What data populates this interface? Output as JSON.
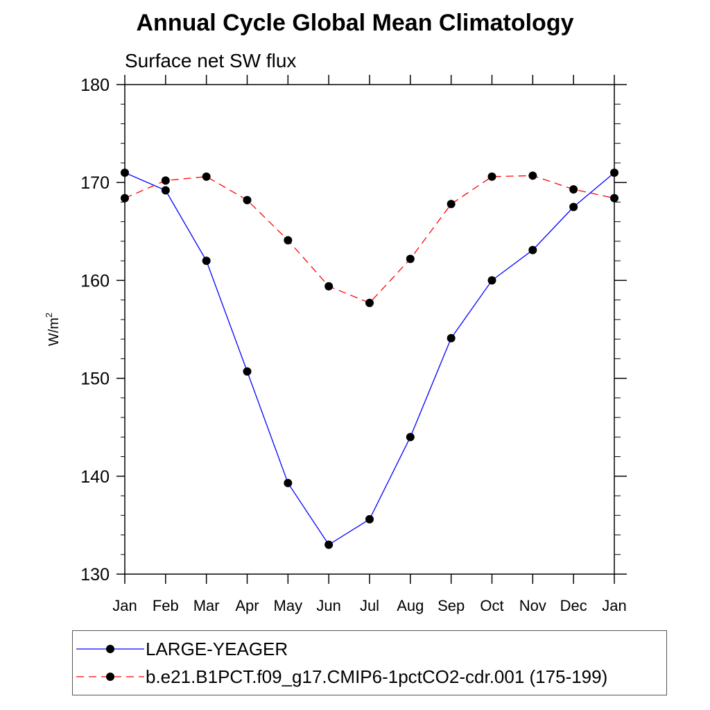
{
  "chart_data": {
    "type": "line",
    "title": "Annual Cycle Global Mean Climatology",
    "subtitle": "Surface net SW flux",
    "ylabel_base": "W/m",
    "ylabel_sup": "2",
    "ylim": [
      130,
      180
    ],
    "yticks": [
      130,
      140,
      150,
      160,
      170,
      180
    ],
    "yminor_step": 2,
    "categories": [
      "Jan",
      "Feb",
      "Mar",
      "Apr",
      "May",
      "Jun",
      "Jul",
      "Aug",
      "Sep",
      "Oct",
      "Nov",
      "Dec",
      "Jan"
    ],
    "series": [
      {
        "name": "LARGE-YEAGER",
        "color": "#0000ff",
        "dash": "solid",
        "values": [
          171.0,
          169.2,
          162.0,
          150.7,
          139.3,
          133.0,
          135.6,
          144.0,
          154.1,
          160.0,
          163.1,
          167.5,
          171.0
        ]
      },
      {
        "name": "b.e21.B1PCT.f09_g17.CMIP6-1pctCO2-cdr.001 (175-199)",
        "color": "#ff0000",
        "dash": "dashed",
        "values": [
          168.4,
          170.2,
          170.6,
          168.2,
          164.1,
          159.4,
          157.7,
          162.2,
          167.8,
          170.6,
          170.7,
          169.3,
          168.4
        ]
      }
    ],
    "legend_position": "bottom"
  }
}
